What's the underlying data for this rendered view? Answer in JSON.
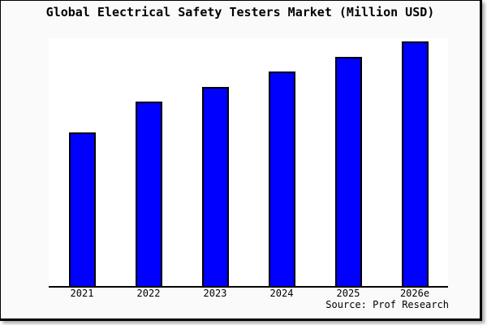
{
  "chart_data": {
    "type": "bar",
    "title": "Global Electrical Safety Testers Market (Million USD)",
    "categories": [
      "2021",
      "2022",
      "2023",
      "2024",
      "2025",
      "2026e"
    ],
    "values": [
      62.8,
      75.4,
      81.4,
      87.7,
      93.7,
      100
    ],
    "units": "relative height (y-axis unlabeled in chart; max bar = 100)",
    "xlabel": "",
    "ylabel": "",
    "ylim": [
      0,
      101.3
    ],
    "grid": false,
    "legend": null,
    "bar_color": "#0000FF",
    "bar_edge_color": "#000000",
    "source": "Source: Prof Research"
  },
  "colors": {
    "figure_background": "#fafafa",
    "plot_background": "#ffffff",
    "frame_border": "#000000",
    "text": "#000000"
  }
}
